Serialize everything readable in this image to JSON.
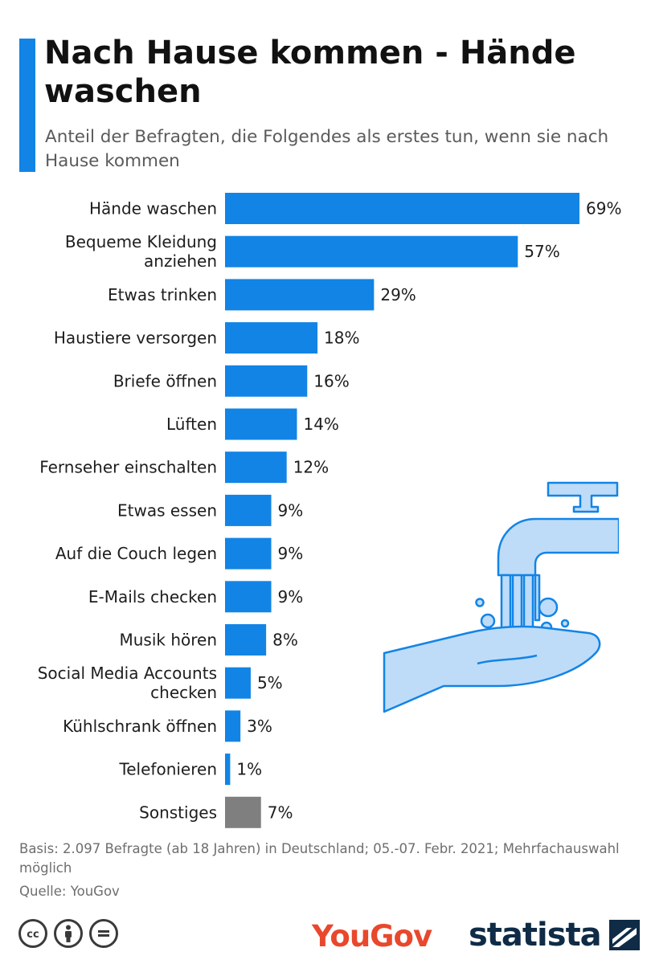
{
  "header": {
    "title": "Nach Hause kommen - Hände waschen",
    "subtitle": "Anteil der Befragten, die Folgendes als erstes tun, wenn sie nach Hause kommen"
  },
  "chart_data": {
    "type": "bar",
    "orientation": "horizontal",
    "title": "Nach Hause kommen - Hände waschen",
    "subtitle": "Anteil der Befragten, die Folgendes als erstes tun, wenn sie nach Hause kommen",
    "categories": [
      "Hände waschen",
      "Bequeme Kleidung anziehen",
      "Etwas trinken",
      "Haustiere versorgen",
      "Briefe öffnen",
      "Lüften",
      "Fernseher einschalten",
      "Etwas essen",
      "Auf die Couch legen",
      "E-Mails checken",
      "Musik hören",
      "Social Media Accounts checken",
      "Kühlschrank öffnen",
      "Telefonieren",
      "Sonstiges"
    ],
    "values": [
      69,
      57,
      29,
      18,
      16,
      14,
      12,
      9,
      9,
      9,
      8,
      5,
      3,
      1,
      7
    ],
    "value_labels": [
      "69%",
      "57%",
      "29%",
      "18%",
      "16%",
      "14%",
      "12%",
      "9%",
      "9%",
      "9%",
      "8%",
      "5%",
      "3%",
      "1%",
      "7%"
    ],
    "unit": "%",
    "xlim": [
      0,
      69
    ],
    "grid": false,
    "colors": {
      "bar": "#1284e6",
      "bar_other": "#7f7f7f",
      "highlighted_category": "Sonstiges"
    }
  },
  "footer": {
    "note": "Basis: 2.097 Befragte (ab 18 Jahren) in Deutschland; 05.-07. Febr. 2021; Mehrfachauswahl möglich",
    "source": "Quelle: YouGov",
    "license_icons": [
      "cc-icon",
      "attribution-icon",
      "no-derivatives-icon"
    ],
    "logo_yougov": "YouGov",
    "logo_statista": "statista"
  },
  "colors": {
    "accent": "#1284e6",
    "illustration_light": "#bedcf8",
    "illustration_stroke": "#1284e6",
    "yougov_red": "#e8482c",
    "statista_navy": "#0f2b46"
  }
}
